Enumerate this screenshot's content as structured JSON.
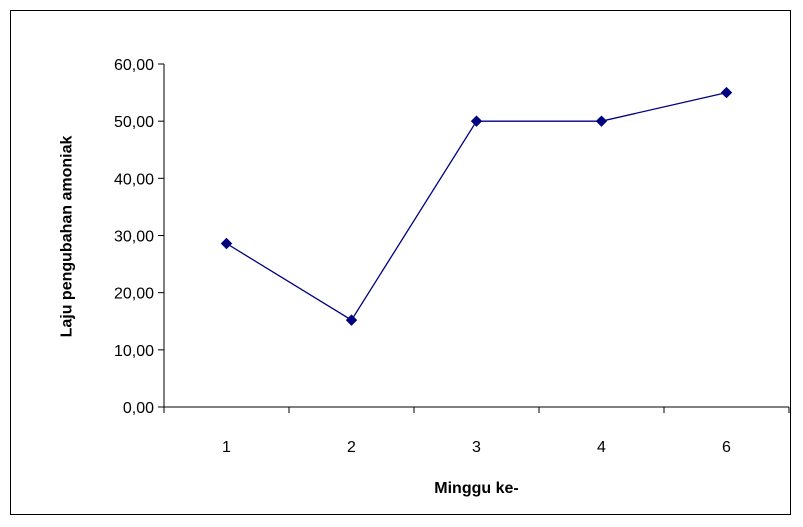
{
  "chart_data": {
    "type": "line",
    "categories": [
      "1",
      "2",
      "3",
      "4",
      "6"
    ],
    "series": [
      {
        "values": [
          28.6,
          15.2,
          50.0,
          50.0,
          55.0
        ]
      }
    ],
    "xlabel": "Minggu ke-",
    "ylabel": "Laju pengubahan amoniak",
    "ylim": [
      0,
      60
    ],
    "yticks": [
      "0,00",
      "10,00",
      "20,00",
      "30,00",
      "40,00",
      "50,00",
      "60,00"
    ],
    "grid": false,
    "legend": "none",
    "colors": {
      "series": "#000080",
      "axis": "#000000"
    },
    "marker": "diamond"
  }
}
